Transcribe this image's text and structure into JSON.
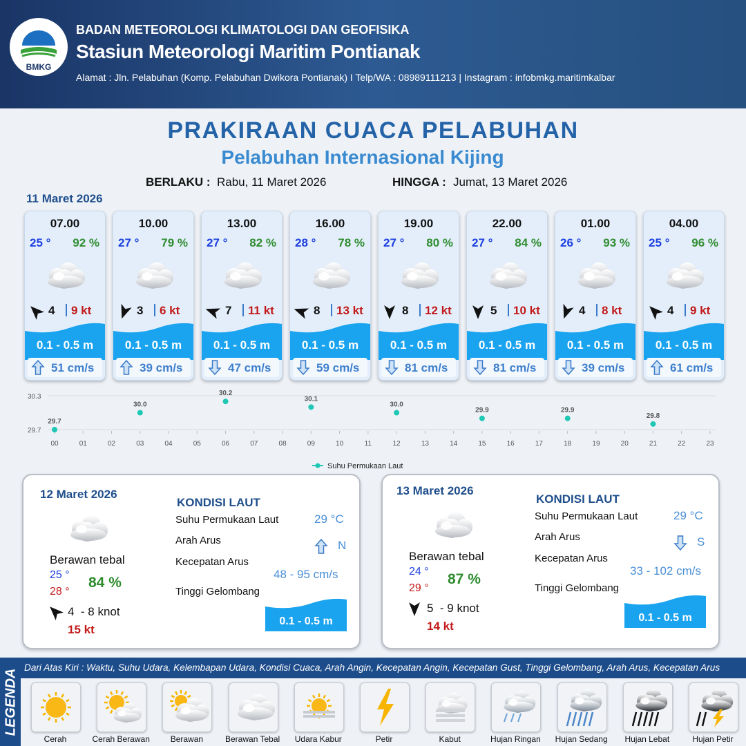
{
  "header": {
    "logo_text": "BMKG",
    "agency": "BADAN METEOROLOGI KLIMATOLOGI DAN GEOFISIKA",
    "station": "Stasiun Meteorologi Maritim Pontianak",
    "address": "Alamat : Jln. Pelabuhan (Komp. Pelabuhan Dwikora Pontianak) I Telp/WA : 08989111213 | Instagram : infobmkg.maritimkalbar"
  },
  "title": "PRAKIRAAN CUACA PELABUHAN",
  "subtitle": "Pelabuhan Internasional Kijing",
  "validity": {
    "from_label": "BERLAKU :",
    "from": "Rabu, 11 Maret 2026",
    "to_label": "HINGGA :",
    "to": "Jumat, 13 Maret 2026"
  },
  "day1": {
    "date": "11 Maret 2026",
    "slots": [
      {
        "time": "07.00",
        "temp": "25 °",
        "humidity": "92 %",
        "wind": "4",
        "gust": "9 kt",
        "wave": "0.1 - 0.5 m",
        "current": "51 cm/s"
      },
      {
        "time": "10.00",
        "temp": "27 °",
        "humidity": "79 %",
        "wind": "3",
        "gust": "6 kt",
        "wave": "0.1 - 0.5 m",
        "current": "39 cm/s"
      },
      {
        "time": "13.00",
        "temp": "27 °",
        "humidity": "82 %",
        "wind": "7",
        "gust": "11 kt",
        "wave": "0.1 - 0.5 m",
        "current": "47 cm/s"
      },
      {
        "time": "16.00",
        "temp": "28 °",
        "humidity": "78 %",
        "wind": "8",
        "gust": "13 kt",
        "wave": "0.1 - 0.5 m",
        "current": "59 cm/s"
      },
      {
        "time": "19.00",
        "temp": "27 °",
        "humidity": "80 %",
        "wind": "8",
        "gust": "12 kt",
        "wave": "0.1 - 0.5 m",
        "current": "81 cm/s"
      },
      {
        "time": "22.00",
        "temp": "27 °",
        "humidity": "84 %",
        "wind": "5",
        "gust": "10 kt",
        "wave": "0.1 - 0.5 m",
        "current": "81 cm/s"
      },
      {
        "time": "01.00",
        "temp": "26 °",
        "humidity": "93 %",
        "wind": "4",
        "gust": "8 kt",
        "wave": "0.1 - 0.5 m",
        "current": "39 cm/s"
      },
      {
        "time": "04.00",
        "temp": "25 °",
        "humidity": "96 %",
        "wind": "4",
        "gust": "9 kt",
        "wave": "0.1 - 0.5 m",
        "current": "61 cm/s"
      }
    ]
  },
  "chart_data": {
    "type": "scatter",
    "x": [
      0,
      3,
      6,
      9,
      12,
      15,
      18,
      21
    ],
    "series": [
      {
        "name": "Suhu Permukaan Laut",
        "color": "#1fc8b4",
        "values": [
          29.7,
          30.0,
          30.2,
          30.1,
          30.0,
          29.9,
          29.9,
          29.8
        ],
        "value_labels": [
          "29.7",
          "30.0",
          "30.2",
          "30.1",
          "30.0",
          "29.9",
          "29.9",
          "29.8"
        ]
      }
    ],
    "xlim": [
      0,
      23
    ],
    "xticks": [
      {
        "value": 0,
        "label": "00"
      },
      {
        "value": 1,
        "label": "01"
      },
      {
        "value": 2,
        "label": "02"
      },
      {
        "value": 3,
        "label": "03"
      },
      {
        "value": 4,
        "label": "04"
      },
      {
        "value": 5,
        "label": "05"
      },
      {
        "value": 6,
        "label": "06"
      },
      {
        "value": 7,
        "label": "07"
      },
      {
        "value": 8,
        "label": "08"
      },
      {
        "value": 9,
        "label": "09"
      },
      10,
      11,
      12,
      13,
      14,
      15,
      16,
      17,
      18,
      19,
      20,
      21,
      22,
      23
    ],
    "ylim": [
      29.7,
      30.3
    ],
    "yticks": [
      29.7,
      30.3
    ],
    "grid": true,
    "legend": "bottom"
  },
  "days": [
    {
      "date": "12 Maret 2026",
      "condition": "Berawan tebal",
      "temp_min": "25 °",
      "temp_max": "28 °",
      "humidity": "84 %",
      "wind": "4  - 8 knot",
      "gust": "15 kt",
      "sea": {
        "heading": "KONDISI LAUT",
        "sst_label": "Suhu Permukaan Laut",
        "sst": "29 °C",
        "dir_label": "Arah Arus",
        "dir": "N",
        "speed_label": "Kecepatan Arus",
        "speed": "48 - 95 cm/s",
        "wave_label": "Tinggi Gelombang",
        "wave": "0.1 - 0.5 m"
      }
    },
    {
      "date": "13 Maret 2026",
      "condition": "Berawan tebal",
      "temp_min": "24 °",
      "temp_max": "29 °",
      "humidity": "87 %",
      "wind": "5  - 9 knot",
      "gust": "14 kt",
      "sea": {
        "heading": "KONDISI LAUT",
        "sst_label": "Suhu Permukaan Laut",
        "sst": "29 °C",
        "dir_label": "Arah Arus",
        "dir": "S",
        "speed_label": "Kecepatan Arus",
        "speed": "33 - 102 cm/s",
        "wave_label": "Tinggi Gelombang",
        "wave": "0.1 - 0.5 m"
      }
    }
  ],
  "legend": {
    "label": "LEGENDA",
    "description": "Dari Atas Kiri : Waktu, Suhu Udara, Kelembapan Udara, Kondisi Cuaca, Arah Angin, Kecepatan Angin, Kecepatan Gust, Tinggi Gelombang, Arah Arus, Kecepatan Arus",
    "items": [
      "Cerah",
      "Cerah Berawan",
      "Berawan",
      "Berawan Tebal",
      "Udara Kabur",
      "Petir",
      "Kabut",
      "Hujan Ringan",
      "Hujan Sedang",
      "Hujan Lebat",
      "Hujan Petir"
    ]
  }
}
